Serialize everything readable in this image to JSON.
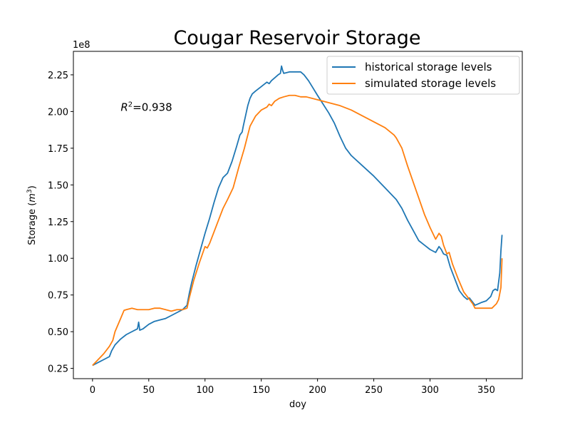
{
  "chart_data": {
    "type": "line",
    "title": "Cougar Reservoir Storage",
    "xlabel": "doy",
    "ylabel_text": "Storage (",
    "ylabel_unit": "m",
    "ylabel_exp": "3",
    "ylabel_close": ")",
    "y_offset_text": "1e8",
    "y_scale": 100000000,
    "xlim": [
      -17,
      382
    ],
    "ylim": [
      0.18,
      2.41
    ],
    "x_ticks": [
      0,
      50,
      100,
      150,
      200,
      250,
      300,
      350
    ],
    "x_tick_labels": [
      "0",
      "50",
      "100",
      "150",
      "200",
      "250",
      "300",
      "350"
    ],
    "y_ticks": [
      0.25,
      0.5,
      0.75,
      1.0,
      1.25,
      1.5,
      1.75,
      2.0,
      2.25
    ],
    "y_tick_labels": [
      "0.25",
      "0.50",
      "0.75",
      "1.00",
      "1.25",
      "1.50",
      "1.75",
      "2.00",
      "2.25"
    ],
    "grid": false,
    "legend_position": "top-right",
    "annotation": {
      "r_symbol": "R",
      "r_exp": "2",
      "r_value": "=0.938",
      "x": 25,
      "y": 2.0
    },
    "series": [
      {
        "name": "historical storage levels",
        "color": "#1f77b4",
        "x": [
          0,
          5,
          10,
          15,
          17,
          20,
          25,
          30,
          35,
          40,
          41,
          42,
          45,
          50,
          55,
          60,
          65,
          70,
          75,
          80,
          84,
          86,
          88,
          92,
          96,
          100,
          104,
          108,
          112,
          116,
          120,
          124,
          128,
          131,
          133,
          134,
          136,
          138,
          140,
          142,
          145,
          150,
          155,
          157,
          159,
          162,
          165,
          167,
          168,
          169,
          170,
          175,
          180,
          185,
          188,
          192,
          196,
          200,
          205,
          210,
          215,
          220,
          225,
          230,
          240,
          250,
          260,
          270,
          275,
          280,
          285,
          290,
          295,
          300,
          305,
          308,
          310,
          312,
          315,
          318,
          322,
          326,
          330,
          333,
          335,
          337,
          340,
          343,
          346,
          350,
          354,
          356,
          358,
          360,
          362,
          363,
          364
        ],
        "values": [
          0.27,
          0.29,
          0.31,
          0.33,
          0.37,
          0.41,
          0.45,
          0.48,
          0.5,
          0.52,
          0.565,
          0.51,
          0.52,
          0.55,
          0.57,
          0.58,
          0.59,
          0.61,
          0.63,
          0.65,
          0.68,
          0.76,
          0.83,
          0.95,
          1.06,
          1.17,
          1.27,
          1.38,
          1.48,
          1.55,
          1.58,
          1.66,
          1.76,
          1.84,
          1.86,
          1.9,
          1.97,
          2.04,
          2.09,
          2.12,
          2.14,
          2.17,
          2.2,
          2.19,
          2.21,
          2.23,
          2.25,
          2.26,
          2.31,
          2.28,
          2.26,
          2.27,
          2.27,
          2.27,
          2.25,
          2.21,
          2.16,
          2.11,
          2.05,
          1.99,
          1.92,
          1.83,
          1.75,
          1.7,
          1.63,
          1.56,
          1.48,
          1.4,
          1.34,
          1.26,
          1.19,
          1.12,
          1.09,
          1.06,
          1.04,
          1.08,
          1.06,
          1.03,
          1.02,
          0.94,
          0.86,
          0.78,
          0.74,
          0.72,
          0.73,
          0.71,
          0.68,
          0.69,
          0.7,
          0.71,
          0.74,
          0.78,
          0.79,
          0.78,
          0.9,
          1.05,
          1.16
        ]
      },
      {
        "name": "simulated storage levels",
        "color": "#ff7f0e",
        "x": [
          0,
          5,
          10,
          15,
          18,
          20,
          25,
          28,
          30,
          35,
          40,
          45,
          50,
          55,
          60,
          65,
          70,
          75,
          80,
          84,
          86,
          90,
          95,
          100,
          102,
          104,
          108,
          112,
          116,
          120,
          125,
          130,
          135,
          140,
          145,
          150,
          155,
          157,
          159,
          162,
          166,
          170,
          175,
          180,
          185,
          190,
          200,
          210,
          220,
          230,
          240,
          250,
          260,
          268,
          270,
          275,
          280,
          285,
          290,
          295,
          300,
          305,
          308,
          310,
          312,
          315,
          317,
          320,
          325,
          330,
          335,
          338,
          340,
          345,
          350,
          355,
          359,
          361,
          363,
          364
        ],
        "values": [
          0.27,
          0.31,
          0.35,
          0.4,
          0.44,
          0.5,
          0.59,
          0.645,
          0.65,
          0.66,
          0.65,
          0.65,
          0.65,
          0.66,
          0.66,
          0.65,
          0.64,
          0.65,
          0.65,
          0.66,
          0.73,
          0.85,
          0.97,
          1.08,
          1.07,
          1.1,
          1.18,
          1.26,
          1.34,
          1.4,
          1.48,
          1.62,
          1.75,
          1.9,
          1.97,
          2.01,
          2.03,
          2.05,
          2.04,
          2.07,
          2.09,
          2.1,
          2.11,
          2.11,
          2.1,
          2.1,
          2.08,
          2.06,
          2.04,
          2.01,
          1.97,
          1.93,
          1.89,
          1.84,
          1.82,
          1.75,
          1.63,
          1.52,
          1.41,
          1.3,
          1.21,
          1.13,
          1.17,
          1.15,
          1.09,
          1.03,
          1.04,
          0.96,
          0.86,
          0.77,
          0.72,
          0.69,
          0.66,
          0.66,
          0.66,
          0.66,
          0.69,
          0.72,
          0.8,
          1.0
        ]
      }
    ]
  }
}
